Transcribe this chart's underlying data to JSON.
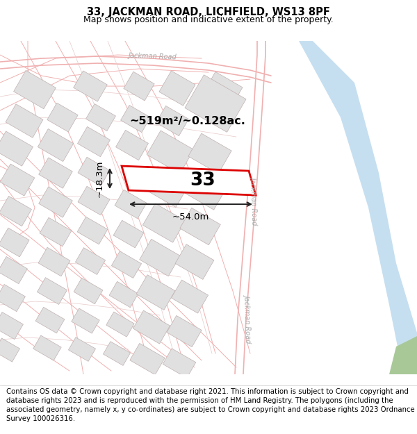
{
  "title": "33, JACKMAN ROAD, LICHFIELD, WS13 8PF",
  "subtitle": "Map shows position and indicative extent of the property.",
  "footer": "Contains OS data © Crown copyright and database right 2021. This information is subject to Crown copyright and database rights 2023 and is reproduced with the permission of HM Land Registry. The polygons (including the associated geometry, namely x, y co-ordinates) are subject to Crown copyright and database rights 2023 Ordnance Survey 100026316.",
  "title_fontsize": 10.5,
  "subtitle_fontsize": 9,
  "footer_fontsize": 7.3,
  "property_label": "33",
  "area_label": "~519m²/~0.128ac.",
  "width_label": "~54.0m",
  "height_label": "~18.3m",
  "property_outline_color": "#dd0000",
  "road_color": "#f0b0b0",
  "road_color2": "#e8c8c8",
  "building_fill": "#e0e0e0",
  "building_outline": "#c0b0b0",
  "river_color": "#c5dff0",
  "bg_color": "#f8f8f8",
  "green_color": "#a8c898",
  "road_label_color": "#aaaaaa",
  "dim_line_color": "#222222"
}
